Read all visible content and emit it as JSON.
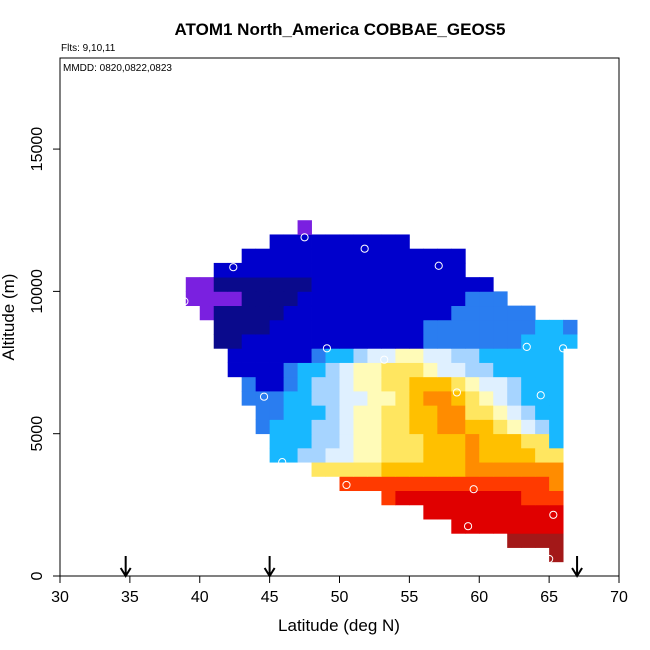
{
  "chart_data": {
    "type": "heatmap",
    "title": "ATOM1 North_America COBBAE_GEOS5",
    "annotations": [
      "Flts: 9,10,11",
      "MMDD: 0820,0822,0823"
    ],
    "xlabel": "Latitude (deg N)",
    "ylabel": "Altitude (m)",
    "xlim": [
      30,
      70
    ],
    "ylim": [
      0,
      18200
    ],
    "xticks": [
      30,
      35,
      40,
      45,
      50,
      55,
      60,
      65,
      70
    ],
    "yticks": [
      0,
      5000,
      10000,
      15000
    ],
    "xtick_labels": [
      "30",
      "35",
      "40",
      "45",
      "50",
      "55",
      "60",
      "65",
      "70"
    ],
    "ytick_labels": [
      "0",
      "5000",
      "10000",
      "15000"
    ],
    "grid": false,
    "cell_width_deg": 1,
    "cell_height_m": 500,
    "colorscale": [
      "#a31818",
      "#e00000",
      "#ff3a00",
      "#ff8c00",
      "#ffc000",
      "#ffe660",
      "#fffbb8",
      "#dff0ff",
      "#a6d4ff",
      "#18b8ff",
      "#2a7df0",
      "#0000cc",
      "#0a0a8c",
      "#7a20e0"
    ],
    "rows": [
      {
        "y": 750,
        "x0": 65,
        "values": [
          0
        ]
      },
      {
        "y": 1250,
        "x0": 62,
        "values": [
          0,
          0,
          0,
          0
        ]
      },
      {
        "y": 1750,
        "x0": 58,
        "values": [
          1,
          1,
          1,
          1,
          1,
          1,
          1,
          1
        ]
      },
      {
        "y": 2250,
        "x0": 56,
        "values": [
          1,
          1,
          1,
          1,
          1,
          1,
          1,
          1,
          1,
          1
        ]
      },
      {
        "y": 2750,
        "x0": 53,
        "values": [
          2,
          1,
          1,
          1,
          1,
          1,
          1,
          1,
          1,
          1,
          2,
          2,
          2
        ]
      },
      {
        "y": 3250,
        "x0": 50,
        "values": [
          2,
          2,
          2,
          2,
          2,
          2,
          2,
          2,
          2,
          2,
          2,
          2,
          2,
          2,
          2,
          3
        ]
      },
      {
        "y": 3750,
        "x0": 48,
        "values": [
          5,
          5,
          5,
          5,
          5,
          4,
          4,
          4,
          4,
          4,
          4,
          3,
          3,
          3,
          3,
          3,
          3,
          3
        ]
      },
      {
        "y": 4250,
        "x0": 45,
        "values": [
          9,
          9,
          8,
          8,
          7,
          7,
          6,
          6,
          5,
          5,
          5,
          4,
          4,
          4,
          3,
          4,
          4,
          4,
          4,
          5,
          5
        ]
      },
      {
        "y": 4750,
        "x0": 45,
        "values": [
          9,
          9,
          9,
          8,
          8,
          7,
          6,
          6,
          5,
          5,
          5,
          4,
          4,
          4,
          3,
          4,
          4,
          4,
          5,
          5,
          9
        ]
      },
      {
        "y": 5250,
        "x0": 44,
        "values": [
          10,
          9,
          9,
          9,
          8,
          8,
          7,
          6,
          6,
          5,
          5,
          4,
          4,
          3,
          3,
          4,
          4,
          5,
          6,
          7,
          8,
          9
        ]
      },
      {
        "y": 5750,
        "x0": 44,
        "values": [
          10,
          10,
          9,
          9,
          9,
          8,
          7,
          6,
          6,
          5,
          5,
          4,
          4,
          3,
          3,
          5,
          5,
          6,
          7,
          8,
          9,
          9
        ]
      },
      {
        "y": 6250,
        "x0": 43,
        "values": [
          10,
          10,
          10,
          9,
          9,
          8,
          8,
          7,
          7,
          6,
          6,
          5,
          4,
          3,
          3,
          4,
          5,
          6,
          7,
          8,
          9,
          9,
          9
        ]
      },
      {
        "y": 6750,
        "x0": 43,
        "values": [
          10,
          11,
          11,
          10,
          9,
          8,
          8,
          7,
          6,
          6,
          5,
          5,
          4,
          4,
          4,
          5,
          6,
          7,
          7,
          8,
          9,
          9,
          9
        ]
      },
      {
        "y": 7250,
        "x0": 42,
        "values": [
          11,
          11,
          11,
          11,
          10,
          9,
          9,
          8,
          7,
          6,
          6,
          5,
          5,
          5,
          6,
          7,
          7,
          8,
          8,
          9,
          9,
          9,
          9,
          9
        ]
      },
      {
        "y": 7750,
        "x0": 42,
        "values": [
          11,
          11,
          11,
          11,
          11,
          11,
          10,
          9,
          9,
          8,
          7,
          7,
          6,
          6,
          7,
          7,
          8,
          8,
          9,
          9,
          9,
          9,
          9,
          9
        ]
      },
      {
        "y": 8250,
        "x0": 41,
        "values": [
          12,
          12,
          11,
          11,
          11,
          11,
          11,
          11,
          11,
          11,
          11,
          11,
          11,
          11,
          11,
          10,
          10,
          10,
          10,
          10,
          10,
          10,
          9,
          9,
          9,
          9
        ]
      },
      {
        "y": 8750,
        "x0": 41,
        "values": [
          12,
          12,
          12,
          12,
          11,
          11,
          11,
          11,
          11,
          11,
          11,
          11,
          11,
          11,
          11,
          10,
          10,
          10,
          10,
          10,
          10,
          10,
          10,
          9,
          9,
          10
        ]
      },
      {
        "y": 9250,
        "x0": 40,
        "values": [
          13,
          12,
          12,
          12,
          12,
          12,
          11,
          11,
          11,
          11,
          11,
          11,
          11,
          11,
          11,
          11,
          11,
          11,
          10,
          10,
          10,
          10,
          10,
          10
        ]
      },
      {
        "y": 9750,
        "x0": 39,
        "values": [
          13,
          13,
          13,
          13,
          12,
          12,
          12,
          12,
          11,
          11,
          11,
          11,
          11,
          11,
          11,
          11,
          11,
          11,
          11,
          11,
          10,
          10,
          10
        ]
      },
      {
        "y": 10250,
        "x0": 39,
        "values": [
          13,
          13,
          12,
          12,
          12,
          12,
          12,
          12,
          12,
          11,
          11,
          11,
          11,
          11,
          11,
          11,
          11,
          11,
          11,
          11,
          11,
          11
        ]
      },
      {
        "y": 10750,
        "x0": 41,
        "values": [
          11,
          11,
          11,
          11,
          11,
          11,
          11,
          11,
          11,
          11,
          11,
          11,
          11,
          11,
          11,
          11,
          11,
          11
        ]
      },
      {
        "y": 11250,
        "x0": 43,
        "values": [
          11,
          11,
          11,
          11,
          11,
          11,
          11,
          11,
          11,
          11,
          11,
          11,
          11,
          11,
          11,
          11
        ]
      },
      {
        "y": 11750,
        "x0": 45,
        "values": [
          11,
          11,
          11,
          11,
          11,
          11,
          11,
          11,
          11,
          11
        ]
      },
      {
        "y": 12250,
        "x0": 47,
        "values": [
          13
        ]
      }
    ],
    "points": [
      {
        "x": 47.5,
        "y": 11900
      },
      {
        "x": 51.8,
        "y": 11500
      },
      {
        "x": 42.4,
        "y": 10850
      },
      {
        "x": 57.1,
        "y": 10900
      },
      {
        "x": 38.9,
        "y": 9650
      },
      {
        "x": 49.1,
        "y": 8000
      },
      {
        "x": 63.4,
        "y": 8050
      },
      {
        "x": 66.0,
        "y": 8000
      },
      {
        "x": 53.2,
        "y": 7600
      },
      {
        "x": 44.6,
        "y": 6300
      },
      {
        "x": 58.4,
        "y": 6450
      },
      {
        "x": 64.4,
        "y": 6350
      },
      {
        "x": 45.9,
        "y": 4000
      },
      {
        "x": 50.5,
        "y": 3200
      },
      {
        "x": 59.6,
        "y": 3050
      },
      {
        "x": 65.3,
        "y": 2150
      },
      {
        "x": 59.2,
        "y": 1750
      },
      {
        "x": 65.0,
        "y": 600
      }
    ],
    "arrows_x": [
      34.7,
      45.0,
      67.0
    ]
  }
}
